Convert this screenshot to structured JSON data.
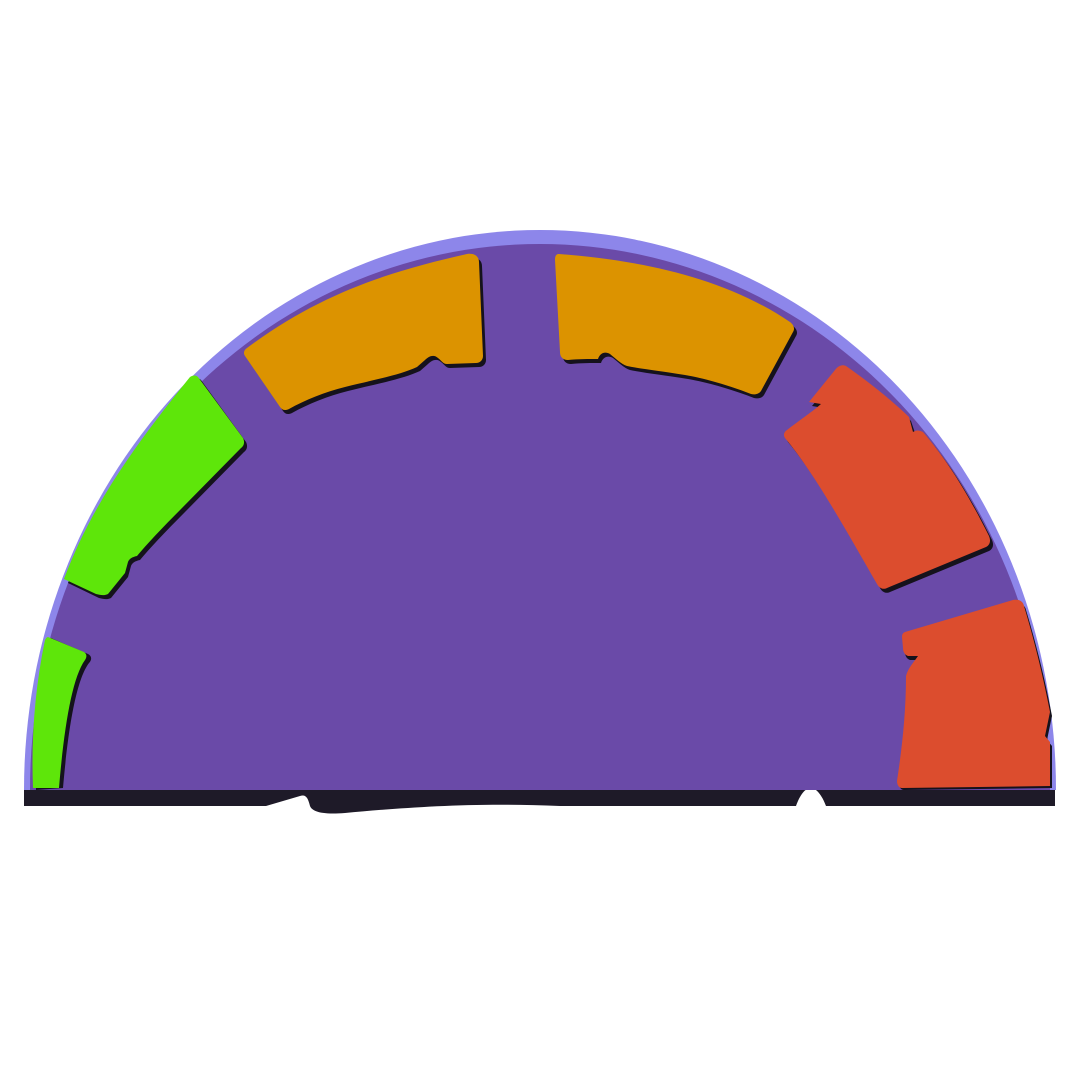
{
  "gauge": {
    "colors": {
      "background": "#ffffff",
      "rim": "#8d86ea",
      "dial": "#6a4aa8",
      "base_shadow": "#1e1a28",
      "segment_outline": "#15121c",
      "low": "#5ee60a",
      "mid": "#dc9300",
      "high": "#dc4d2e"
    },
    "segments": [
      {
        "name": "segment-1",
        "level": "low"
      },
      {
        "name": "segment-2",
        "level": "low"
      },
      {
        "name": "segment-3",
        "level": "mid"
      },
      {
        "name": "segment-4",
        "level": "mid"
      },
      {
        "name": "segment-5",
        "level": "high"
      },
      {
        "name": "segment-6",
        "level": "high"
      }
    ]
  }
}
